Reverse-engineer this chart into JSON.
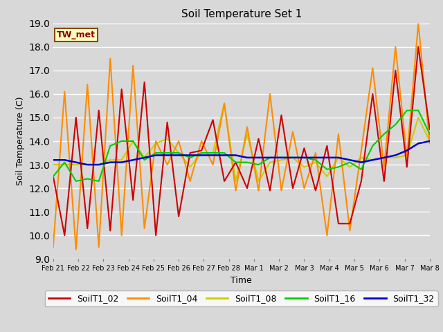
{
  "title": "Soil Temperature Set 1",
  "xlabel": "Time",
  "ylabel": "Soil Temperature (C)",
  "ylim": [
    9.0,
    19.0
  ],
  "yticks": [
    9.0,
    10.0,
    11.0,
    12.0,
    13.0,
    14.0,
    15.0,
    16.0,
    17.0,
    18.0,
    19.0
  ],
  "annotation": "TW_met",
  "annotation_color": "#8B0000",
  "annotation_bg": "#FFFFC0",
  "annotation_border": "#8B4513",
  "background_color": "#D8D8D8",
  "grid_color": "#FFFFFF",
  "colors": {
    "SoilT1_02": "#CC0000",
    "SoilT1_04": "#FF8C00",
    "SoilT1_08": "#CCCC00",
    "SoilT1_16": "#00CC00",
    "SoilT1_32": "#0000CC"
  },
  "xtick_labels": [
    "Feb 21",
    "Feb 22",
    "Feb 23",
    "Feb 24",
    "Feb 25",
    "Feb 26",
    "Feb 27",
    "Feb 28",
    "Mar 1",
    "Mar 2",
    "Mar 3",
    "Mar 4",
    "Mar 5",
    "Mar 6",
    "Mar 7",
    "Mar 8"
  ],
  "SoilT1_02": [
    12.5,
    10.0,
    15.0,
    10.3,
    15.3,
    10.2,
    16.2,
    11.5,
    16.5,
    10.0,
    14.8,
    10.8,
    13.5,
    13.6,
    14.9,
    12.3,
    13.1,
    12.0,
    14.1,
    11.9,
    15.1,
    12.0,
    13.7,
    11.9,
    13.8,
    10.5,
    10.5,
    12.3,
    16.0,
    12.3,
    17.0,
    12.9,
    18.0,
    14.5
  ],
  "SoilT1_04": [
    9.5,
    16.1,
    9.4,
    16.4,
    9.5,
    17.5,
    10.0,
    17.2,
    10.3,
    14.0,
    13.0,
    14.0,
    12.3,
    14.0,
    13.0,
    15.6,
    11.9,
    14.6,
    11.9,
    16.0,
    11.9,
    14.4,
    12.0,
    13.5,
    10.0,
    14.3,
    10.2,
    13.6,
    17.1,
    12.9,
    18.0,
    13.3,
    19.0,
    13.9
  ],
  "SoilT1_08": [
    13.0,
    13.0,
    13.0,
    13.0,
    13.0,
    13.2,
    13.2,
    14.0,
    13.3,
    13.9,
    14.1,
    13.5,
    12.9,
    13.5,
    13.5,
    15.6,
    12.3,
    14.3,
    12.3,
    13.1,
    13.2,
    13.3,
    12.9,
    13.1,
    12.5,
    13.3,
    12.9,
    13.3,
    13.2,
    13.3,
    13.3,
    13.4,
    15.0,
    14.0
  ],
  "SoilT1_16": [
    12.5,
    13.1,
    12.3,
    12.4,
    12.3,
    13.8,
    14.0,
    14.0,
    13.2,
    13.5,
    13.5,
    13.5,
    13.3,
    13.5,
    13.5,
    13.5,
    13.1,
    13.1,
    13.0,
    13.3,
    13.3,
    13.3,
    13.3,
    13.2,
    12.8,
    12.9,
    13.1,
    12.8,
    13.8,
    14.3,
    14.7,
    15.3,
    15.3,
    14.3
  ],
  "SoilT1_32": [
    13.2,
    13.2,
    13.1,
    13.0,
    13.0,
    13.1,
    13.1,
    13.2,
    13.3,
    13.4,
    13.4,
    13.4,
    13.4,
    13.4,
    13.4,
    13.4,
    13.4,
    13.3,
    13.3,
    13.3,
    13.3,
    13.3,
    13.3,
    13.3,
    13.3,
    13.3,
    13.2,
    13.1,
    13.2,
    13.3,
    13.4,
    13.6,
    13.9,
    14.0
  ]
}
